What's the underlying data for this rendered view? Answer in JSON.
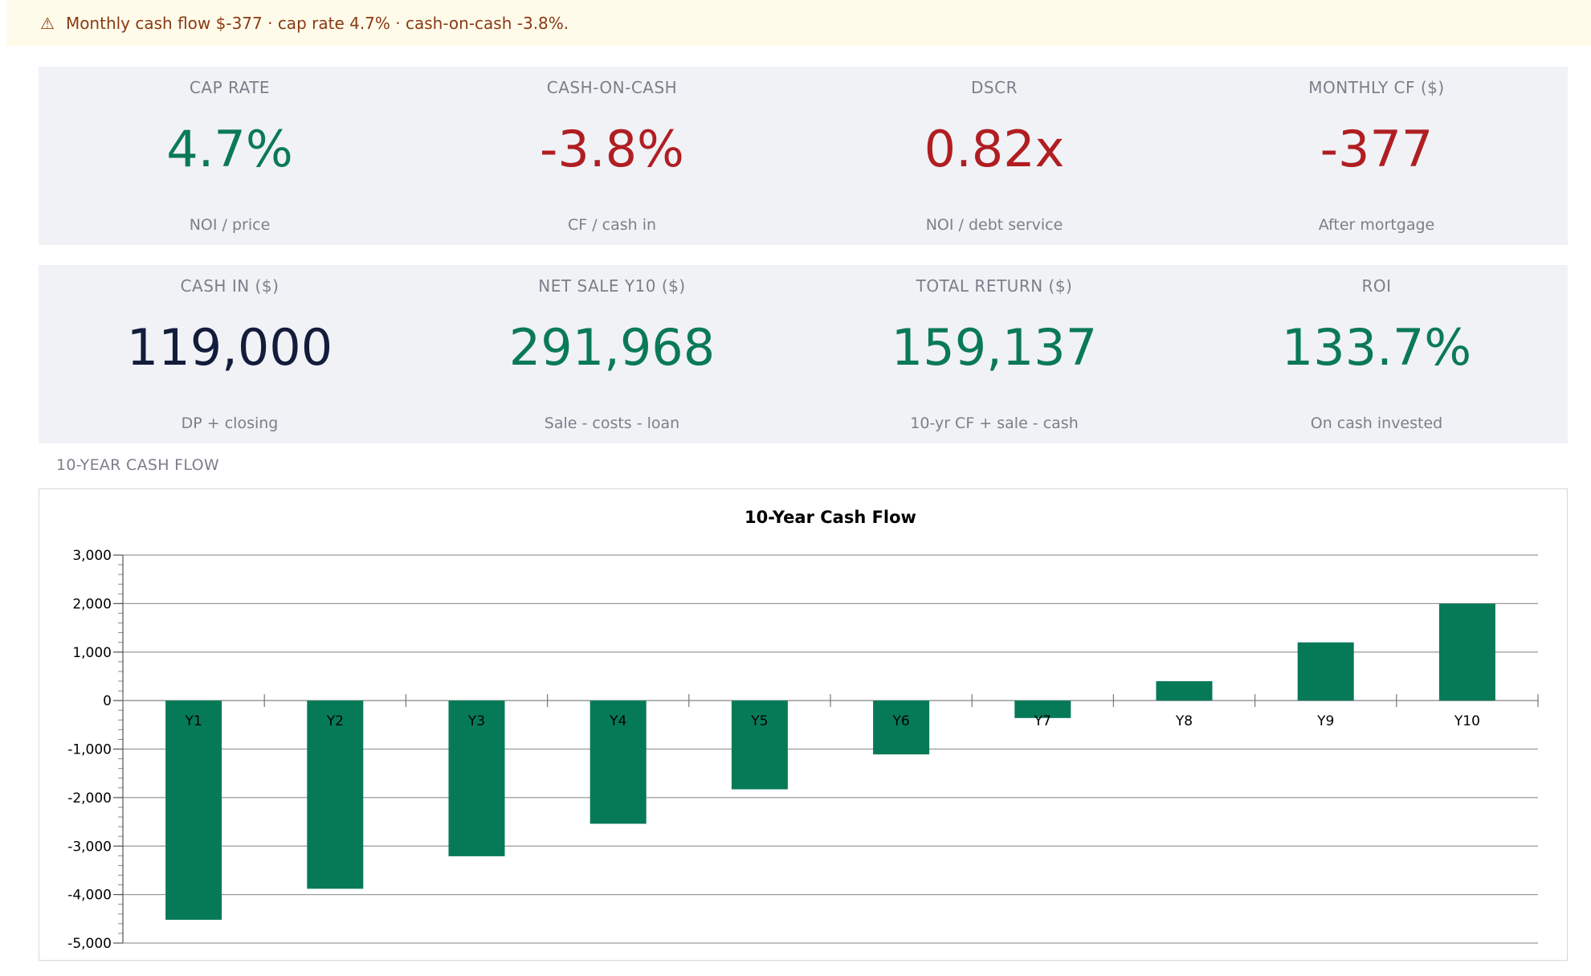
{
  "alert": {
    "icon": "warning-icon",
    "icon_glyph": "⚠",
    "text": "Monthly cash flow $-377 · cap rate 4.7% · cash-on-cash -3.8%."
  },
  "kpis_row1": [
    {
      "label": "CAP RATE",
      "value": "4.7%",
      "sub": "NOI / price",
      "tone": "green"
    },
    {
      "label": "CASH-ON-CASH",
      "value": "-3.8%",
      "sub": "CF / cash in",
      "tone": "red"
    },
    {
      "label": "DSCR",
      "value": "0.82x",
      "sub": "NOI / debt service",
      "tone": "red"
    },
    {
      "label": "MONTHLY CF ($)",
      "value": "-377",
      "sub": "After mortgage",
      "tone": "red"
    }
  ],
  "kpis_row2": [
    {
      "label": "CASH IN ($)",
      "value": "119,000",
      "sub": "DP + closing",
      "tone": "dark"
    },
    {
      "label": "NET SALE Y10 ($)",
      "value": "291,968",
      "sub": "Sale - costs - loan",
      "tone": "green"
    },
    {
      "label": "TOTAL RETURN ($)",
      "value": "159,137",
      "sub": "10-yr CF + sale - cash",
      "tone": "green"
    },
    {
      "label": "ROI",
      "value": "133.7%",
      "sub": "On cash invested",
      "tone": "green"
    }
  ],
  "section_title": "10-YEAR CASH FLOW",
  "colors": {
    "bar": "#067a57",
    "green": "#0a7a55",
    "red": "#b01e22"
  },
  "chart_data": {
    "type": "bar",
    "title": "10-Year Cash Flow",
    "xlabel": "",
    "ylabel": "",
    "categories": [
      "Y1",
      "Y2",
      "Y3",
      "Y4",
      "Y5",
      "Y6",
      "Y7",
      "Y8",
      "Y9",
      "Y10"
    ],
    "values": [
      -4520,
      -3880,
      -3210,
      -2540,
      -1830,
      -1110,
      -360,
      400,
      1200,
      2000
    ],
    "ylim": [
      -5000,
      3000
    ],
    "yticks": [
      3000,
      2000,
      1000,
      0,
      -1000,
      -2000,
      -3000,
      -4000,
      -5000
    ],
    "ytick_labels": [
      "3,000",
      "2,000",
      "1,000",
      "0",
      "-1,000",
      "-2,000",
      "-3,000",
      "-4,000",
      "-5,000"
    ],
    "grid": true,
    "legend": "none"
  }
}
